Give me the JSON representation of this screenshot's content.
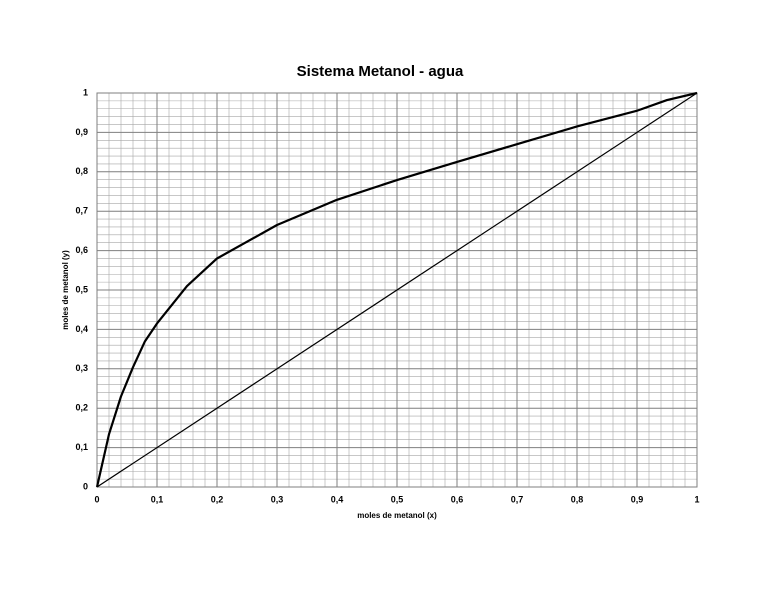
{
  "chart_data": {
    "type": "line",
    "title": "Sistema Metanol - agua",
    "x_label": "moles de metanol (x)",
    "y_label": "moles de metanol (y)",
    "xlim": [
      0,
      1
    ],
    "ylim": [
      0,
      1
    ],
    "xticks": [
      0,
      {
        "value": 0.1,
        "label": "0,1"
      },
      {
        "value": 0.2,
        "label": "0,2"
      },
      {
        "value": 0.3,
        "label": "0,3"
      },
      {
        "value": 0.4,
        "label": "0,4"
      },
      {
        "value": 0.5,
        "label": "0,5"
      },
      {
        "value": 0.6,
        "label": "0,6"
      },
      {
        "value": 0.7,
        "label": "0,7"
      },
      {
        "value": 0.8,
        "label": "0,8"
      },
      {
        "value": 0.9,
        "label": "0,9"
      },
      1
    ],
    "yticks": [
      0,
      {
        "value": 0.1,
        "label": "0,1"
      },
      {
        "value": 0.2,
        "label": "0,2"
      },
      {
        "value": 0.3,
        "label": "0,3"
      },
      {
        "value": 0.4,
        "label": "0,4"
      },
      {
        "value": 0.5,
        "label": "0,5"
      },
      {
        "value": 0.6,
        "label": "0,6"
      },
      {
        "value": 0.7,
        "label": "0,7"
      },
      {
        "value": 0.8,
        "label": "0,8"
      },
      {
        "value": 0.9,
        "label": "0,9"
      },
      1
    ],
    "grid": true,
    "minor_grid": true,
    "series": [
      {
        "color": "#000000",
        "width": 2.2,
        "x": [
          0,
          0.02,
          0.04,
          0.06,
          0.08,
          0.1,
          0.15,
          0.2,
          0.3,
          0.4,
          0.5,
          0.6,
          0.7,
          0.8,
          0.9,
          0.95,
          1
        ],
        "values": [
          0,
          0.134,
          0.23,
          0.304,
          0.37,
          0.415,
          0.51,
          0.58,
          0.665,
          0.729,
          0.779,
          0.825,
          0.87,
          0.915,
          0.955,
          0.982,
          1
        ]
      },
      {
        "color": "#000000",
        "width": 1.2,
        "x": [
          0,
          1
        ],
        "values": [
          0,
          1
        ]
      }
    ]
  }
}
